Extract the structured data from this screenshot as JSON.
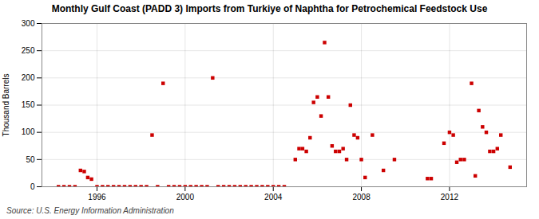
{
  "chart_data": {
    "type": "scatter",
    "title": "Monthly Gulf Coast (PADD 3) Imports from Turkiye of Naphtha for Petrochemical Feedstock Use",
    "ylabel": "Thousand Barrels",
    "source": "Source: U.S. Energy Information Administration",
    "color": "#cc0000",
    "marker": "square",
    "grid": true,
    "xlim": [
      1993.5,
      2015.5
    ],
    "xticks": [
      1996,
      2000,
      2004,
      2008,
      2012
    ],
    "ylim": [
      0,
      300
    ],
    "yticks": [
      0,
      50,
      100,
      150,
      200,
      250,
      300
    ],
    "x": [
      1994.25,
      1994.5,
      1994.75,
      1995.0,
      1995.25,
      1995.42,
      1995.58,
      1995.75,
      1996.0,
      1996.25,
      1996.5,
      1996.75,
      1997.0,
      1997.25,
      1997.5,
      1997.75,
      1998.0,
      1998.25,
      1998.5,
      1998.75,
      1999.0,
      1999.25,
      1999.5,
      1999.75,
      2000.0,
      2000.25,
      2000.5,
      2000.75,
      2001.0,
      2001.25,
      2001.5,
      2001.75,
      2002.0,
      2002.25,
      2002.5,
      2002.75,
      2003.0,
      2003.25,
      2003.5,
      2003.75,
      2004.0,
      2004.25,
      2004.5,
      2005.0,
      2005.17,
      2005.33,
      2005.5,
      2005.67,
      2005.83,
      2006.0,
      2006.17,
      2006.33,
      2006.5,
      2006.67,
      2006.83,
      2007.0,
      2007.17,
      2007.33,
      2007.5,
      2007.67,
      2007.83,
      2008.0,
      2008.17,
      2008.5,
      2009.0,
      2009.5,
      2011.0,
      2011.17,
      2011.75,
      2012.0,
      2012.17,
      2012.33,
      2012.5,
      2012.67,
      2013.0,
      2013.17,
      2013.33,
      2013.5,
      2013.67,
      2013.83,
      2014.0,
      2014.17,
      2014.33,
      2014.75
    ],
    "values": [
      0,
      0,
      0,
      0,
      30,
      28,
      17,
      14,
      0,
      0,
      0,
      0,
      0,
      0,
      0,
      0,
      0,
      0,
      95,
      0,
      190,
      0,
      0,
      0,
      0,
      0,
      0,
      0,
      0,
      200,
      0,
      0,
      0,
      0,
      0,
      0,
      0,
      0,
      0,
      0,
      0,
      0,
      0,
      50,
      70,
      70,
      65,
      90,
      155,
      165,
      130,
      265,
      165,
      75,
      65,
      65,
      70,
      50,
      150,
      95,
      90,
      50,
      17,
      95,
      30,
      50,
      15,
      15,
      80,
      100,
      95,
      45,
      50,
      50,
      190,
      20,
      140,
      110,
      100,
      65,
      65,
      70,
      95,
      36
    ]
  }
}
